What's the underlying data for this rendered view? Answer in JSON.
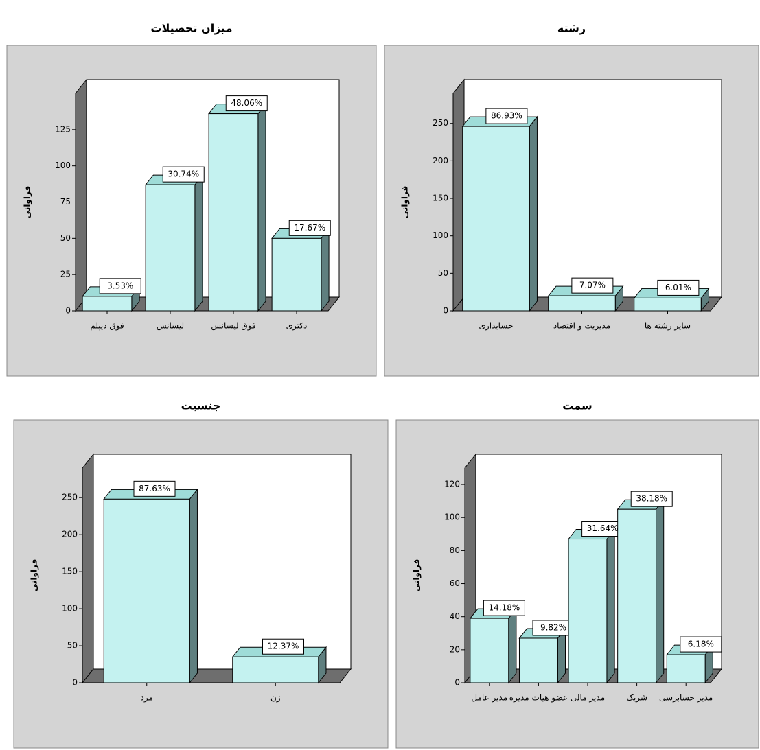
{
  "chart_data": [
    {
      "type": "bar3d",
      "title": "میزان تحصیلات",
      "y_label": "فراوانی",
      "categories": [
        "فوق دیپلم",
        "لیسانس",
        "فوق لیسانس",
        "دکتری"
      ],
      "values": [
        10,
        87,
        136,
        50
      ],
      "bar_labels": [
        "3.53%",
        "30.74%",
        "48.06%",
        "17.67%"
      ],
      "color": "#c4f2f0",
      "ylim": [
        0,
        150
      ],
      "yticks": [
        0,
        25,
        50,
        75,
        100,
        125
      ]
    },
    {
      "type": "bar3d",
      "title": "رشته",
      "y_label": "فراوانی",
      "categories": [
        "حسابداری",
        "مدیریت و اقتصاد",
        "سایر رشته ها"
      ],
      "values": [
        246,
        20,
        17
      ],
      "bar_labels": [
        "86.93%",
        "7.07%",
        "6.01%"
      ],
      "color": "#c4f2f0",
      "ylim": [
        0,
        290
      ],
      "yticks": [
        0,
        50,
        100,
        150,
        200,
        250
      ]
    },
    {
      "type": "bar3d",
      "title": "جنسیت",
      "y_label": "فراوانی",
      "categories": [
        "مرد",
        "زن"
      ],
      "values": [
        248,
        35
      ],
      "bar_labels": [
        "87.63%",
        "12.37%"
      ],
      "color": "#c4f2f0",
      "ylim": [
        0,
        290
      ],
      "yticks": [
        0,
        50,
        100,
        150,
        200,
        250
      ]
    },
    {
      "type": "bar3d",
      "title": "سمت",
      "y_label": "فراوانی",
      "categories": [
        "مدیر عامل",
        "عضو هیات مدیره",
        "مدیر مالی",
        "شریک",
        "مدیر حسابرسی"
      ],
      "values": [
        39,
        27,
        87,
        105,
        17
      ],
      "bar_labels": [
        "14.18%",
        "9.82%",
        "31.64%",
        "38.18%",
        "6.18%"
      ],
      "color": "#c4f2f0",
      "ylim": [
        0,
        130
      ],
      "yticks": [
        0,
        20,
        40,
        60,
        80,
        100,
        120
      ]
    }
  ]
}
